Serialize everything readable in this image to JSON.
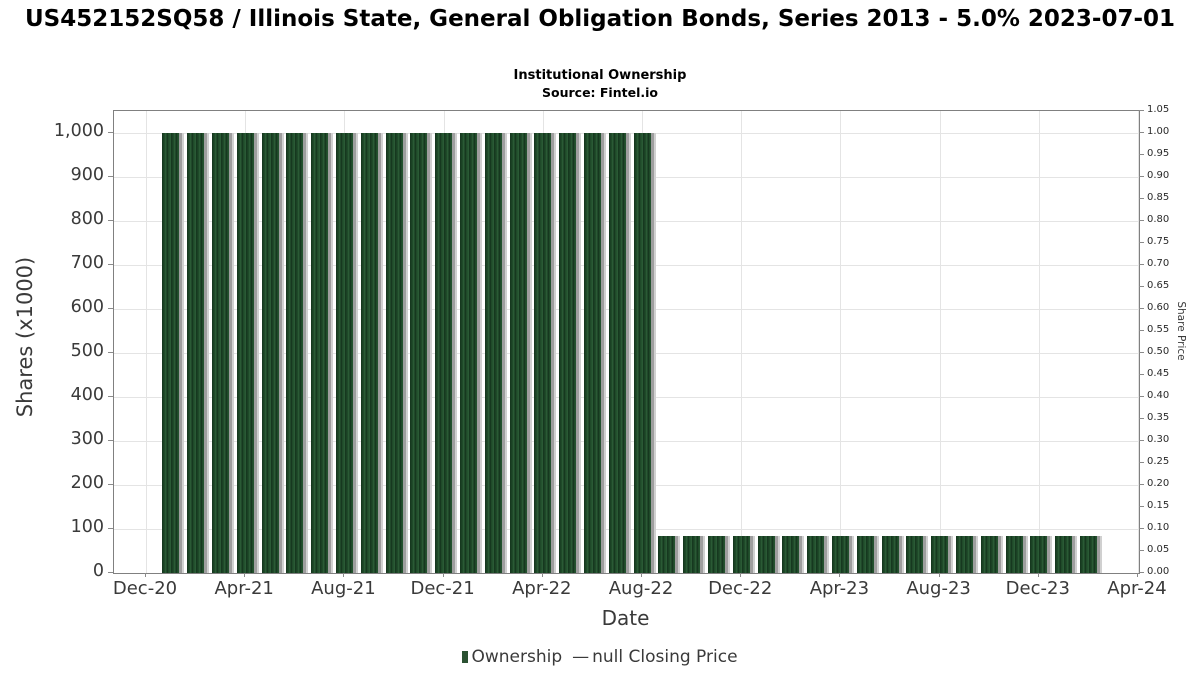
{
  "chart_data": {
    "type": "bar",
    "title": "US452152SQ58 / Illinois State, General Obligation Bonds, Series 2013 - 5.0% 2023-07-01",
    "subtitle": "Institutional Ownership",
    "source": "Source: Fintel.io",
    "xlabel": "Date",
    "ylabel_left": "Shares (x1000)",
    "ylabel_right": "Share Price",
    "ylim_left": [
      0,
      1050
    ],
    "ylim_right": [
      0,
      1.05
    ],
    "grid": true,
    "legend_position": "bottom-center",
    "x_ticks": [
      "Dec-20",
      "Apr-21",
      "Aug-21",
      "Dec-21",
      "Apr-22",
      "Aug-22",
      "Dec-22",
      "Apr-23",
      "Aug-23",
      "Dec-23",
      "Apr-24"
    ],
    "y_left_ticks": [
      "1,000",
      "900",
      "800",
      "700",
      "600",
      "500",
      "400",
      "300",
      "200",
      "100",
      "0"
    ],
    "y_right_ticks": [
      "1.05",
      "1.00",
      "0.95",
      "0.90",
      "0.85",
      "0.80",
      "0.75",
      "0.70",
      "0.65",
      "0.60",
      "0.55",
      "0.50",
      "0.45",
      "0.40",
      "0.35",
      "0.30",
      "0.25",
      "0.20",
      "0.15",
      "0.10",
      "0.05",
      "0.00"
    ],
    "categories": [
      "Jan-21",
      "Feb-21",
      "Mar-21",
      "Apr-21",
      "May-21",
      "Jun-21",
      "Jul-21",
      "Aug-21",
      "Sep-21",
      "Oct-21",
      "Nov-21",
      "Dec-21",
      "Jan-22",
      "Feb-22",
      "Mar-22",
      "Apr-22",
      "May-22",
      "Jun-22",
      "Jul-22",
      "Aug-22",
      "Sep-22",
      "Oct-22",
      "Nov-22",
      "Dec-22",
      "Jan-23",
      "Feb-23",
      "Mar-23",
      "Apr-23",
      "May-23",
      "Jun-23",
      "Jul-23",
      "Aug-23",
      "Sep-23",
      "Oct-23",
      "Nov-23",
      "Dec-23",
      "Jan-24",
      "Feb-24"
    ],
    "values": [
      1000,
      1000,
      1000,
      1000,
      1000,
      1000,
      1000,
      1000,
      1000,
      1000,
      1000,
      1000,
      1000,
      1000,
      1000,
      1000,
      1000,
      1000,
      1000,
      1000,
      85,
      85,
      85,
      85,
      85,
      85,
      85,
      85,
      85,
      85,
      85,
      85,
      85,
      85,
      85,
      85,
      85,
      85
    ],
    "series_name": "Ownership",
    "legend": [
      {
        "label": "Ownership",
        "marker": "bar-square-icon"
      },
      {
        "label": "null Closing Price",
        "marker": "line-dash-icon"
      }
    ],
    "legend_dash": "—"
  },
  "colors": {
    "bar_dark": "#16381f",
    "bar_mid": "#1f4a29",
    "bar_light": "#2a5a35",
    "bar_shadow": "#9e9e9e",
    "bar_shadow2": "#d0d0d0",
    "grid": "#e4e4e4",
    "axis": "#808080",
    "text": "#3a3a3a",
    "legend_marker": "#2b5232"
  }
}
